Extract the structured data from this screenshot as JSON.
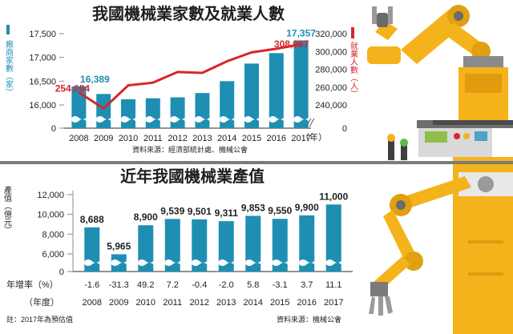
{
  "top": {
    "title": "我國機械業家數及就業人數",
    "left_axis_label": "廠商家數（家）",
    "right_axis_label": "就業人數（人）",
    "x_unit": "（年）",
    "source": "資料來源：經濟部統計處、機械公會"
  },
  "bottom": {
    "title": "近年我國機械業產值",
    "y_axis_label": "產值（億元）",
    "growth_label": "年增率（%）",
    "year_label": "（年度）",
    "note": "註：2017年為預估值",
    "source": "資料來源：機械公會"
  },
  "colors": {
    "bar": "#1e8fb3",
    "line": "#d7262b",
    "title": "#1f1f1f",
    "label_blue": "#1e8fb3",
    "label_red": "#d7262b",
    "robot_yellow": "#f4b31b"
  },
  "chart_data": [
    {
      "type": "bar",
      "title": "我國機械業家數及就業人數",
      "categories": [
        "2008",
        "2009",
        "2010",
        "2011",
        "2012",
        "2013",
        "2014",
        "2015",
        "2016",
        "2017"
      ],
      "series": [
        {
          "name": "廠商家數",
          "axis": "left",
          "values": [
            16389,
            16230,
            16120,
            16140,
            16160,
            16250,
            16500,
            16870,
            17090,
            17357
          ]
        },
        {
          "name": "就業人數",
          "axis": "right",
          "values": [
            254084,
            236000,
            262000,
            265000,
            277000,
            276000,
            289000,
            299000,
            303000,
            308097
          ]
        }
      ],
      "left_ticks": [
        0,
        16000,
        16500,
        17000,
        17500
      ],
      "right_ticks": [
        0,
        240000,
        260000,
        280000,
        300000,
        320000
      ],
      "left_tick_labels": [
        "0",
        "16,000",
        "16,500",
        "17,000",
        "17,500"
      ],
      "right_tick_labels": [
        "0",
        "240,000",
        "260,000",
        "280,000",
        "300,000",
        "320,000"
      ],
      "data_labels": [
        {
          "series": 0,
          "index": 0,
          "text": "16,389"
        },
        {
          "series": 0,
          "index": 9,
          "text": "17,357"
        },
        {
          "series": 1,
          "index": 0,
          "text": "254,084"
        },
        {
          "series": 1,
          "index": 9,
          "text": "308,097"
        }
      ],
      "axis_break": true
    },
    {
      "type": "bar",
      "title": "近年我國機械業產值",
      "categories": [
        "2008",
        "2009",
        "2010",
        "2011",
        "2012",
        "2013",
        "2014",
        "2015",
        "2016",
        "2017"
      ],
      "values": [
        8688,
        5965,
        8900,
        9539,
        9501,
        9311,
        9853,
        9550,
        9900,
        11000
      ],
      "value_labels": [
        "8,688",
        "5,965",
        "8,900",
        "9,539",
        "9,501",
        "9,311",
        "9,853",
        "9,550",
        "9,900",
        "11,000"
      ],
      "growth": [
        "-1.6",
        "-31.3",
        "49.2",
        "7.2",
        "-0.4",
        "-2.0",
        "5.8",
        "-3.1",
        "3.7",
        "11.1"
      ],
      "y_ticks": [
        0,
        6000,
        8000,
        10000,
        12000
      ],
      "y_tick_labels": [
        "0",
        "6,000",
        "8,000",
        "10,000",
        "12,000"
      ],
      "axis_break": true
    }
  ]
}
